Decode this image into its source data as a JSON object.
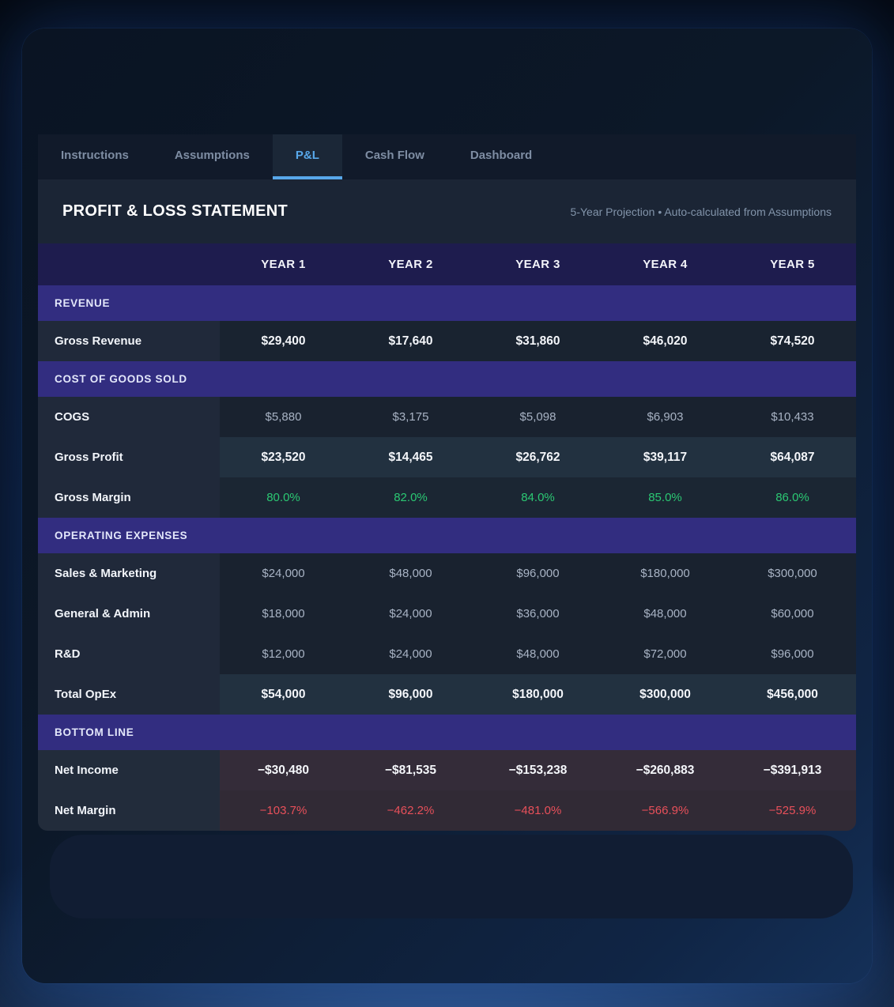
{
  "tabs": [
    {
      "label": "Instructions",
      "active": false
    },
    {
      "label": "Assumptions",
      "active": false
    },
    {
      "label": "P&L",
      "active": true
    },
    {
      "label": "Cash Flow",
      "active": false
    },
    {
      "label": "Dashboard",
      "active": false
    }
  ],
  "header": {
    "title": "PROFIT & LOSS STATEMENT",
    "subtitle": "5-Year Projection • Auto-calculated from Assumptions"
  },
  "table": {
    "year_headers": [
      "YEAR 1",
      "YEAR 2",
      "YEAR 3",
      "YEAR 4",
      "YEAR 5"
    ],
    "sections": [
      {
        "title": "REVENUE",
        "rows": [
          {
            "label": "Gross Revenue",
            "variant": "total-dark",
            "values": [
              "$29,400",
              "$17,640",
              "$31,860",
              "$46,020",
              "$74,520"
            ]
          }
        ]
      },
      {
        "title": "COST OF GOODS SOLD",
        "rows": [
          {
            "label": "COGS",
            "variant": "muted",
            "values": [
              "$5,880",
              "$3,175",
              "$5,098",
              "$6,903",
              "$10,433"
            ]
          },
          {
            "label": "Gross Profit",
            "variant": "total",
            "values": [
              "$23,520",
              "$14,465",
              "$26,762",
              "$39,117",
              "$64,087"
            ]
          },
          {
            "label": "Gross Margin",
            "variant": "green",
            "values": [
              "80.0%",
              "82.0%",
              "84.0%",
              "85.0%",
              "86.0%"
            ]
          }
        ]
      },
      {
        "title": "OPERATING EXPENSES",
        "rows": [
          {
            "label": "Sales & Marketing",
            "variant": "muted",
            "values": [
              "$24,000",
              "$48,000",
              "$96,000",
              "$180,000",
              "$300,000"
            ]
          },
          {
            "label": "General & Admin",
            "variant": "muted",
            "values": [
              "$18,000",
              "$24,000",
              "$36,000",
              "$48,000",
              "$60,000"
            ]
          },
          {
            "label": "R&D",
            "variant": "muted",
            "values": [
              "$12,000",
              "$24,000",
              "$48,000",
              "$72,000",
              "$96,000"
            ]
          },
          {
            "label": "Total OpEx",
            "variant": "total",
            "values": [
              "$54,000",
              "$96,000",
              "$180,000",
              "$300,000",
              "$456,000"
            ]
          }
        ]
      },
      {
        "title": "BOTTOM LINE",
        "rows": [
          {
            "label": "Net Income",
            "variant": "loss-total",
            "values": [
              "−$30,480",
              "−$81,535",
              "−$153,238",
              "−$260,883",
              "−$391,913"
            ]
          },
          {
            "label": "Net Margin",
            "variant": "loss-red",
            "values": [
              "−103.7%",
              "−462.2%",
              "−481.0%",
              "−566.9%",
              "−525.9%"
            ]
          }
        ]
      }
    ]
  },
  "colors": {
    "accent": "#58a8ea",
    "positive": "#2bc873",
    "negative": "#e8505a",
    "section_header_bg": "#322d80",
    "year_header_bg": "#1e1c4e"
  }
}
